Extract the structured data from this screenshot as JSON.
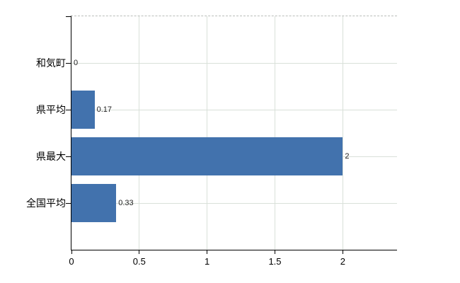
{
  "chart_data": {
    "type": "bar",
    "orientation": "horizontal",
    "title": "",
    "xlabel": "",
    "ylabel": "",
    "categories": [
      "和気町",
      "県平均",
      "県最大",
      "全国平均"
    ],
    "values": [
      0,
      0.17,
      2,
      0.33
    ],
    "value_labels": [
      "0",
      "0.17",
      "2",
      "0.33"
    ],
    "x_ticks": [
      0,
      0.5,
      1,
      1.5,
      2
    ],
    "x_tick_labels": [
      "0",
      "0.5",
      "1",
      "1.5",
      "2"
    ],
    "xlim": [
      0,
      2.4
    ],
    "grid": true,
    "legend": "none",
    "colors": {
      "bar": "#4272ad",
      "axis": "#000000",
      "gridline": "#d9e0d9",
      "plot_top_border": "#b9bdb9",
      "label_text": "#000000",
      "value_text": "#222222"
    }
  }
}
